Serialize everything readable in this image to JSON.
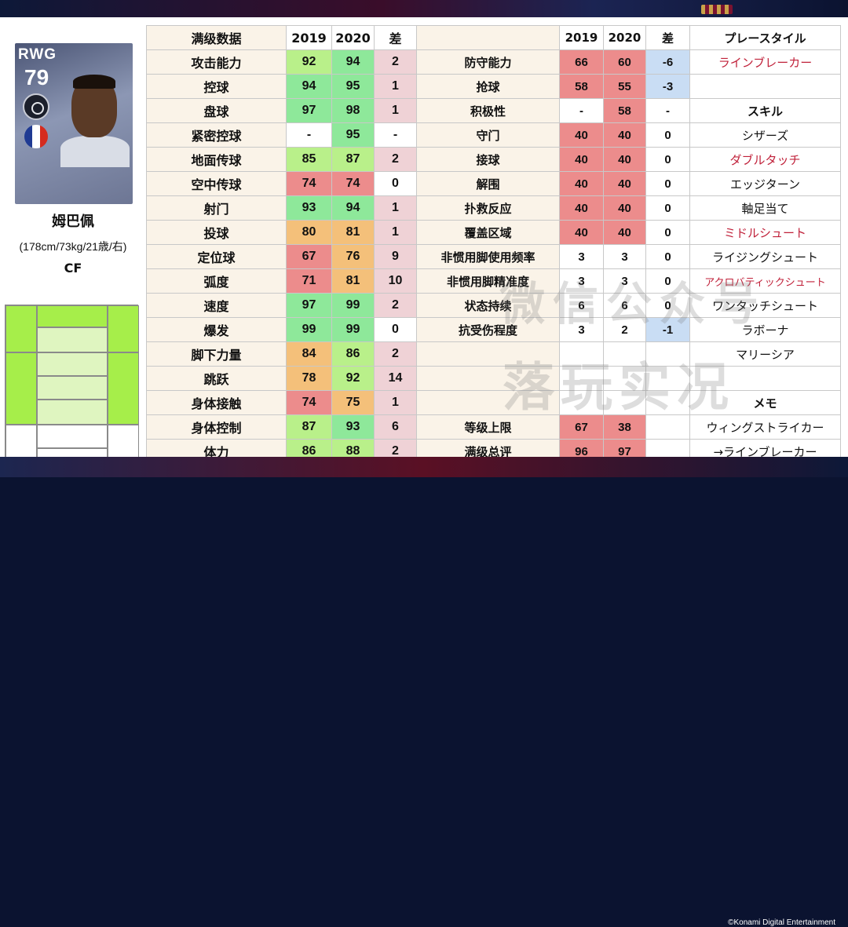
{
  "banner": {
    "copyright": "©Konami Digital Entertainment"
  },
  "player": {
    "position": "RWG",
    "rating": "79",
    "name": "姆巴佩",
    "info": "(178cm/73kg/21歳/右)",
    "role": "CF",
    "flag_colors": [
      "#1f3a93",
      "#ffffff",
      "#d52b1e"
    ]
  },
  "left_table": {
    "headers": {
      "label": "满级数据",
      "y2019": "2019",
      "y2020": "2020",
      "diff": "差"
    },
    "rows": [
      {
        "label": "攻击能力",
        "v2019": "92",
        "v2020": "94",
        "diff": "2"
      },
      {
        "label": "控球",
        "v2019": "94",
        "v2020": "95",
        "diff": "1"
      },
      {
        "label": "盘球",
        "v2019": "97",
        "v2020": "98",
        "diff": "1"
      },
      {
        "label": "紧密控球",
        "v2019": "-",
        "v2020": "95",
        "diff": "-"
      },
      {
        "label": "地面传球",
        "v2019": "85",
        "v2020": "87",
        "diff": "2"
      },
      {
        "label": "空中传球",
        "v2019": "74",
        "v2020": "74",
        "diff": "0"
      },
      {
        "label": "射门",
        "v2019": "93",
        "v2020": "94",
        "diff": "1"
      },
      {
        "label": "投球",
        "v2019": "80",
        "v2020": "81",
        "diff": "1"
      },
      {
        "label": "定位球",
        "v2019": "67",
        "v2020": "76",
        "diff": "9"
      },
      {
        "label": "弧度",
        "v2019": "71",
        "v2020": "81",
        "diff": "10"
      },
      {
        "label": "速度",
        "v2019": "97",
        "v2020": "99",
        "diff": "2"
      },
      {
        "label": "爆发",
        "v2019": "99",
        "v2020": "99",
        "diff": "0"
      },
      {
        "label": "脚下力量",
        "v2019": "84",
        "v2020": "86",
        "diff": "2"
      },
      {
        "label": "跳跃",
        "v2019": "78",
        "v2020": "92",
        "diff": "14"
      },
      {
        "label": "身体接触",
        "v2019": "74",
        "v2020": "75",
        "diff": "1"
      },
      {
        "label": "身体控制",
        "v2019": "87",
        "v2020": "93",
        "diff": "6"
      },
      {
        "label": "体力",
        "v2019": "86",
        "v2020": "88",
        "diff": "2"
      }
    ]
  },
  "right_table": {
    "headers": {
      "label": "",
      "y2019": "2019",
      "y2020": "2020",
      "diff": "差",
      "playstyle": "プレースタイル"
    },
    "rows": [
      {
        "label": "防守能力",
        "v2019": "66",
        "v2020": "60",
        "diff": "-6",
        "side": "ラインブレーカー"
      },
      {
        "label": "抢球",
        "v2019": "58",
        "v2020": "55",
        "diff": "-3",
        "side": ""
      },
      {
        "label": "积极性",
        "v2019": "-",
        "v2020": "58",
        "diff": "-",
        "side": "スキル"
      },
      {
        "label": "守门",
        "v2019": "40",
        "v2020": "40",
        "diff": "0",
        "side": "シザーズ"
      },
      {
        "label": "接球",
        "v2019": "40",
        "v2020": "40",
        "diff": "0",
        "side": "ダブルタッチ"
      },
      {
        "label": "解围",
        "v2019": "40",
        "v2020": "40",
        "diff": "0",
        "side": "エッジターン"
      },
      {
        "label": "扑救反应",
        "v2019": "40",
        "v2020": "40",
        "diff": "0",
        "side": "軸足当て"
      },
      {
        "label": "覆盖区域",
        "v2019": "40",
        "v2020": "40",
        "diff": "0",
        "side": "ミドルシュート"
      },
      {
        "label": "非惯用脚使用频率",
        "v2019": "3",
        "v2020": "3",
        "diff": "0",
        "side": "ライジングシュート"
      },
      {
        "label": "非惯用脚精准度",
        "v2019": "3",
        "v2020": "3",
        "diff": "0",
        "side": "アクロバティックシュート"
      },
      {
        "label": "状态持续",
        "v2019": "6",
        "v2020": "6",
        "diff": "0",
        "side": "ワンタッチシュート"
      },
      {
        "label": "抗受伤程度",
        "v2019": "3",
        "v2020": "2",
        "diff": "-1",
        "side": "ラボーナ"
      },
      {
        "label": "",
        "v2019": "",
        "v2020": "",
        "diff": "",
        "side": "マリーシア"
      },
      {
        "label": "",
        "v2019": "",
        "v2020": "",
        "diff": "",
        "side": ""
      },
      {
        "label": "",
        "v2019": "",
        "v2020": "",
        "diff": "",
        "side": "メモ"
      },
      {
        "label": "等级上限",
        "v2019": "67",
        "v2020": "38",
        "diff": "",
        "side": "ウィングストライカー"
      },
      {
        "label": "满级总评",
        "v2019": "96",
        "v2020": "97",
        "diff": "",
        "side": "→ラインブレーカー"
      }
    ]
  },
  "watermark": {
    "line1": "微信公众号",
    "line2": "落玩实况"
  },
  "colors": {
    "green_bright": "#8ee89a",
    "green_light": "#b9f08a",
    "orange": "#f4c07a",
    "red": "#ec8c8c",
    "diff_pos": "#efd2d6",
    "diff_neg": "#c9ddf4",
    "skill_red": "#c0213a",
    "heat_green": "#a6ee4a",
    "heat_light": "#dff5c0"
  }
}
